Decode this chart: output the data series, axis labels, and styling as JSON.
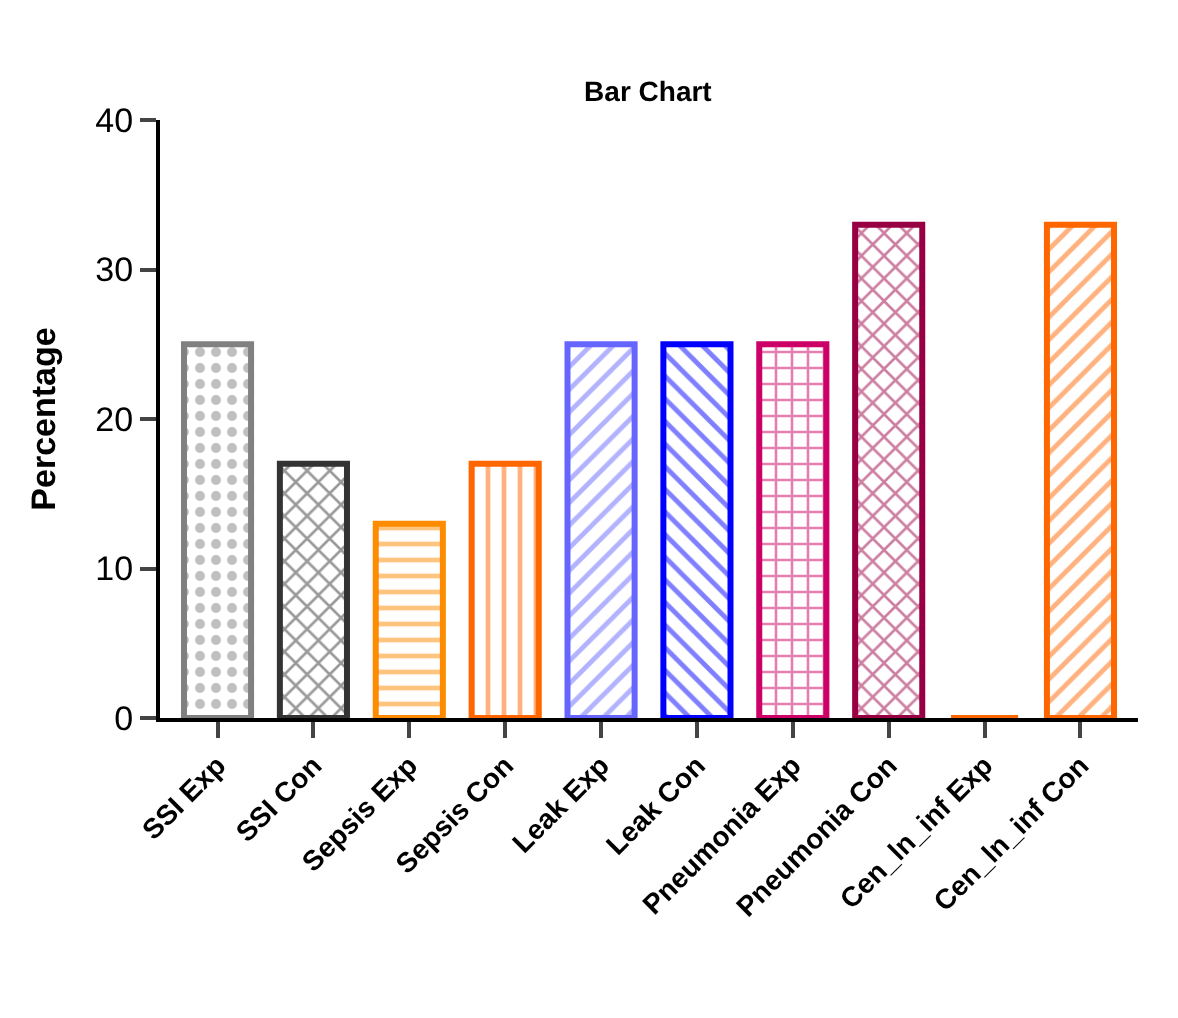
{
  "chart_data": {
    "type": "bar",
    "title": "Bar Chart",
    "ylabel": "Percentage",
    "categories": [
      "SSI Exp",
      "SSI Con",
      "Sepsis Exp",
      "Sepsis Con",
      "Leak Exp",
      "Leak Con",
      "Pneumonia Exp",
      "Pneumonia Con",
      "Cen_ln_inf Exp",
      "Cen_ln_inf Con"
    ],
    "values": [
      25,
      17,
      13,
      17,
      25,
      25,
      25,
      33,
      0,
      33
    ],
    "colors": [
      "#808080",
      "#333333",
      "#ff8c00",
      "#ff6600",
      "#6666ff",
      "#0000ff",
      "#cc0066",
      "#990044",
      "#ff6600",
      "#ff6600"
    ],
    "ylim": [
      0,
      40
    ],
    "yticks": [
      0,
      10,
      20,
      30,
      40
    ],
    "grid": false,
    "legend": false
  }
}
